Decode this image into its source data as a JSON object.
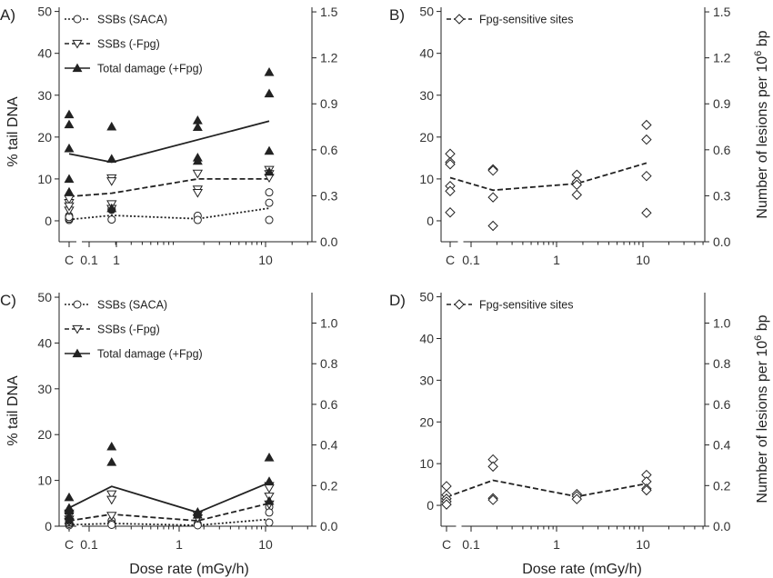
{
  "figure": {
    "x_axis_title": "Dose rate (mGy/h)",
    "left_axis_title": "% tail DNA",
    "right_axis_title_main": "Number of lesions per 10",
    "right_axis_title_sup": "6",
    "right_axis_title_end": " bp",
    "x_tick_labels": [
      "C",
      "0.1",
      "1",
      "10"
    ],
    "colors": {
      "ink": "#222222",
      "background": "#ffffff"
    }
  },
  "chart_data": [
    {
      "panel": "A)",
      "type": "scatter",
      "x_scale": "log",
      "x_control_label": "C",
      "x_control_value": 0.07,
      "xlim": [
        0.06,
        55
      ],
      "ylim": [
        -5,
        51
      ],
      "left_ticks": [
        0,
        10,
        20,
        30,
        40,
        50
      ],
      "right_ylim": [
        0,
        1.53
      ],
      "right_ticks": [
        "0.0",
        "0.3",
        "0.6",
        "0.9",
        "1.2",
        "1.5"
      ],
      "legend": [
        "SSBs (SACA)",
        "SSBs (-Fpg)",
        "Total damage (+Fpg)"
      ],
      "series": [
        {
          "name": "SSBs (SACA)",
          "marker": "circle",
          "line": "dotted",
          "points": [
            [
              0.07,
              0.2
            ],
            [
              0.07,
              0.5
            ],
            [
              0.07,
              1.2
            ],
            [
              0.07,
              0.9
            ],
            [
              0.18,
              2.6
            ],
            [
              0.18,
              0.3
            ],
            [
              0.18,
              2.8
            ],
            [
              1.7,
              1.2
            ],
            [
              1.7,
              0.2
            ],
            [
              11,
              6.8
            ],
            [
              11,
              4.3
            ],
            [
              11,
              0.2
            ]
          ],
          "line_points": [
            [
              0.07,
              0.3
            ],
            [
              0.18,
              1.3
            ],
            [
              1.7,
              0.5
            ],
            [
              11,
              3.0
            ]
          ]
        },
        {
          "name": "SSBs (-Fpg)",
          "marker": "triangle-down",
          "line": "dashed",
          "points": [
            [
              0.07,
              2.5
            ],
            [
              0.07,
              4.3
            ],
            [
              0.07,
              5.2
            ],
            [
              0.07,
              3.5
            ],
            [
              0.18,
              10.2
            ],
            [
              0.18,
              9.5
            ],
            [
              0.18,
              4.0
            ],
            [
              0.18,
              2.9
            ],
            [
              1.7,
              11.3
            ],
            [
              1.7,
              7.5
            ],
            [
              1.7,
              6.7
            ],
            [
              11,
              12.2
            ],
            [
              11,
              11.2
            ],
            [
              11,
              10.3
            ]
          ],
          "line_points": [
            [
              0.07,
              5.8
            ],
            [
              0.18,
              6.6
            ],
            [
              1.7,
              10.0
            ],
            [
              11,
              10.0
            ]
          ]
        },
        {
          "name": "Total damage (+Fpg)",
          "marker": "triangle-up",
          "line": "solid",
          "points": [
            [
              0.07,
              25.4
            ],
            [
              0.07,
              23.0
            ],
            [
              0.07,
              17.3
            ],
            [
              0.07,
              10.0
            ],
            [
              0.07,
              6.9
            ],
            [
              0.18,
              22.5
            ],
            [
              0.18,
              14.8
            ],
            [
              0.18,
              3.0
            ],
            [
              1.7,
              24.0
            ],
            [
              1.7,
              22.4
            ],
            [
              1.7,
              15.1
            ],
            [
              1.7,
              14.3
            ],
            [
              11,
              35.5
            ],
            [
              11,
              30.4
            ],
            [
              11,
              16.7
            ],
            [
              11,
              11.7
            ]
          ],
          "line_points": [
            [
              0.07,
              16.0
            ],
            [
              0.18,
              14.0
            ],
            [
              11,
              23.8
            ]
          ]
        }
      ]
    },
    {
      "panel": "B)",
      "type": "scatter",
      "x_scale": "log",
      "x_control_label": "C",
      "x_control_value": 0.07,
      "xlim": [
        0.06,
        55
      ],
      "ylim": [
        -5,
        51
      ],
      "left_ticks": [
        0,
        10,
        20,
        30,
        40,
        50
      ],
      "right_ylim": [
        0,
        1.53
      ],
      "right_ticks": [
        "0.0",
        "0.3",
        "0.6",
        "0.9",
        "1.2",
        "1.5"
      ],
      "legend": [
        "Fpg-sensitive sites"
      ],
      "series": [
        {
          "name": "Fpg-sensitive sites",
          "marker": "diamond",
          "line": "dashed",
          "points": [
            [
              0.07,
              16.0
            ],
            [
              0.07,
              14.0
            ],
            [
              0.07,
              13.5
            ],
            [
              0.07,
              8.3
            ],
            [
              0.07,
              7.1
            ],
            [
              0.07,
              2.0
            ],
            [
              0.18,
              12.3
            ],
            [
              0.18,
              12.0
            ],
            [
              0.18,
              5.6
            ],
            [
              0.18,
              -1.2
            ],
            [
              1.7,
              11.0
            ],
            [
              1.7,
              9.3
            ],
            [
              1.7,
              8.6
            ],
            [
              1.7,
              6.2
            ],
            [
              11,
              22.9
            ],
            [
              11,
              19.4
            ],
            [
              11,
              10.7
            ],
            [
              11,
              1.9
            ]
          ],
          "line_points": [
            [
              0.07,
              10.3
            ],
            [
              0.18,
              7.3
            ],
            [
              1.7,
              8.9
            ],
            [
              11,
              13.8
            ]
          ]
        }
      ]
    },
    {
      "panel": "C)",
      "type": "scatter",
      "x_scale": "log",
      "x_control_label": "C",
      "x_control_value": 0.07,
      "xlim": [
        0.06,
        55
      ],
      "ylim": [
        0,
        51
      ],
      "left_ticks": [
        0,
        10,
        20,
        30,
        40,
        50
      ],
      "right_ylim": [
        0,
        1.15
      ],
      "right_ticks": [
        "0.0",
        "0.2",
        "0.4",
        "0.6",
        "0.8",
        "1.0"
      ],
      "legend": [
        "SSBs (SACA)",
        "SSBs (-Fpg)",
        "Total damage (+Fpg)"
      ],
      "series": [
        {
          "name": "SSBs (SACA)",
          "marker": "circle",
          "line": "dotted",
          "points": [
            [
              0.07,
              0.2
            ],
            [
              0.07,
              0.5
            ],
            [
              0.07,
              0.8
            ],
            [
              0.07,
              1.2
            ],
            [
              0.18,
              1.2
            ],
            [
              0.18,
              0.6
            ],
            [
              0.18,
              0.3
            ],
            [
              1.7,
              0.5
            ],
            [
              1.7,
              0.2
            ],
            [
              11,
              4.2
            ],
            [
              11,
              3.0
            ],
            [
              11,
              0.8
            ]
          ],
          "line_points": [
            [
              0.07,
              0.3
            ],
            [
              0.18,
              0.6
            ],
            [
              1.7,
              0.2
            ],
            [
              11,
              1.5
            ]
          ]
        },
        {
          "name": "SSBs (-Fpg)",
          "marker": "triangle-down",
          "line": "dashed",
          "points": [
            [
              0.07,
              2.8
            ],
            [
              0.07,
              2.3
            ],
            [
              0.07,
              1.5
            ],
            [
              0.07,
              1.0
            ],
            [
              0.18,
              7.0
            ],
            [
              0.18,
              5.8
            ],
            [
              0.18,
              2.3
            ],
            [
              1.7,
              2.4
            ],
            [
              1.7,
              1.8
            ],
            [
              11,
              8.8
            ],
            [
              11,
              8.3
            ],
            [
              11,
              6.5
            ],
            [
              11,
              4.8
            ]
          ],
          "line_points": [
            [
              0.07,
              1.2
            ],
            [
              0.18,
              2.6
            ],
            [
              1.7,
              1.2
            ],
            [
              11,
              5.0
            ]
          ]
        },
        {
          "name": "Total damage (+Fpg)",
          "marker": "triangle-up",
          "line": "solid",
          "points": [
            [
              0.07,
              6.3
            ],
            [
              0.07,
              4.0
            ],
            [
              0.07,
              3.4
            ],
            [
              0.07,
              2.2
            ],
            [
              0.07,
              1.3
            ],
            [
              0.18,
              17.4
            ],
            [
              0.18,
              14.0
            ],
            [
              1.7,
              3.1
            ],
            [
              1.7,
              2.5
            ],
            [
              11,
              15.0
            ],
            [
              11,
              9.8
            ],
            [
              11,
              5.5
            ]
          ],
          "line_points": [
            [
              0.07,
              4.0
            ],
            [
              0.18,
              8.7
            ],
            [
              1.7,
              3.0
            ],
            [
              11,
              9.5
            ]
          ]
        }
      ]
    },
    {
      "panel": "D)",
      "type": "scatter",
      "x_scale": "log",
      "x_control_label": "C",
      "x_control_value": 0.07,
      "xlim": [
        0.06,
        55
      ],
      "ylim": [
        -5,
        51
      ],
      "left_ticks": [
        0,
        10,
        20,
        30,
        40,
        50
      ],
      "right_ylim": [
        0,
        1.15
      ],
      "right_ticks": [
        "0.0",
        "0.2",
        "0.4",
        "0.6",
        "0.8",
        "1.0"
      ],
      "legend": [
        "Fpg-sensitive sites"
      ],
      "series": [
        {
          "name": "Fpg-sensitive sites",
          "marker": "diamond",
          "line": "dashed",
          "points": [
            [
              0.07,
              4.6
            ],
            [
              0.07,
              2.5
            ],
            [
              0.07,
              1.6
            ],
            [
              0.07,
              0.9
            ],
            [
              0.07,
              0.2
            ],
            [
              0.18,
              11.0
            ],
            [
              0.18,
              9.3
            ],
            [
              0.18,
              1.7
            ],
            [
              0.18,
              1.3
            ],
            [
              1.7,
              2.7
            ],
            [
              1.7,
              2.2
            ],
            [
              1.7,
              1.5
            ],
            [
              11,
              7.3
            ],
            [
              11,
              5.7
            ],
            [
              11,
              4.0
            ],
            [
              11,
              3.6
            ]
          ],
          "line_points": [
            [
              0.07,
              2.0
            ],
            [
              0.18,
              6.0
            ],
            [
              1.7,
              2.1
            ],
            [
              11,
              5.2
            ]
          ]
        }
      ]
    }
  ]
}
